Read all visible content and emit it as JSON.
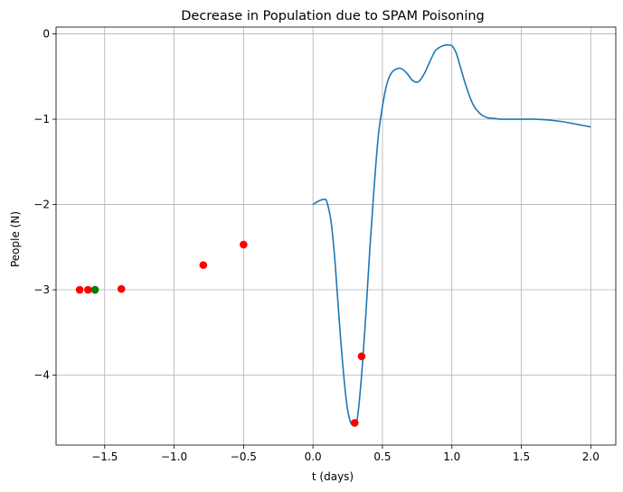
{
  "chart_data": {
    "type": "line",
    "title": "Decrease in Population due to SPAM Poisoning",
    "xlabel": "t (days)",
    "ylabel": "People (N)",
    "xlim": [
      -1.85,
      2.18
    ],
    "ylim": [
      -4.82,
      0.08
    ],
    "grid": true,
    "x_ticks": [
      -1.5,
      -1.0,
      -0.5,
      0.0,
      0.5,
      1.0,
      1.5,
      2.0
    ],
    "x_tick_labels": [
      "−1.5",
      "−1.0",
      "−0.5",
      "0.0",
      "0.5",
      "1.0",
      "1.5",
      "2.0"
    ],
    "y_ticks": [
      0,
      -1,
      -2,
      -3,
      -4
    ],
    "y_tick_labels": [
      "0",
      "−1",
      "−2",
      "−3",
      "−4"
    ],
    "series": [
      {
        "name": "curve",
        "kind": "line",
        "color": "#1f77b4",
        "x": [
          0.0,
          0.04,
          0.08,
          0.1,
          0.13,
          0.16,
          0.2,
          0.24,
          0.27,
          0.3,
          0.32,
          0.35,
          0.38,
          0.41,
          0.44,
          0.47,
          0.5,
          0.53,
          0.56,
          0.6,
          0.64,
          0.68,
          0.72,
          0.76,
          0.8,
          0.84,
          0.88,
          0.92,
          0.96,
          1.0,
          1.03,
          1.06,
          1.1,
          1.15,
          1.2,
          1.25,
          1.3,
          1.35,
          1.4,
          1.5,
          1.6,
          1.7,
          1.8,
          1.9,
          2.0
        ],
        "y": [
          -2.0,
          -1.96,
          -1.94,
          -1.97,
          -2.2,
          -2.7,
          -3.6,
          -4.3,
          -4.55,
          -4.58,
          -4.5,
          -4.0,
          -3.3,
          -2.5,
          -1.8,
          -1.2,
          -0.85,
          -0.6,
          -0.47,
          -0.41,
          -0.41,
          -0.47,
          -0.55,
          -0.56,
          -0.47,
          -0.33,
          -0.2,
          -0.15,
          -0.13,
          -0.14,
          -0.22,
          -0.38,
          -0.6,
          -0.82,
          -0.93,
          -0.98,
          -0.99,
          -1.0,
          -1.0,
          -1.0,
          -1.0,
          -1.01,
          -1.03,
          -1.06,
          -1.09
        ]
      },
      {
        "name": "red points",
        "kind": "scatter",
        "color": "#ff0000",
        "x": [
          -1.68,
          -1.62,
          -1.57,
          -1.38,
          -0.79,
          -0.5,
          0.3,
          0.35
        ],
        "y": [
          -3.0,
          -3.0,
          -3.0,
          -2.99,
          -2.71,
          -2.47,
          -4.56,
          -3.78
        ]
      },
      {
        "name": "green point",
        "kind": "scatter",
        "color": "#008000",
        "x": [
          -1.57
        ],
        "y": [
          -3.0
        ]
      }
    ]
  }
}
